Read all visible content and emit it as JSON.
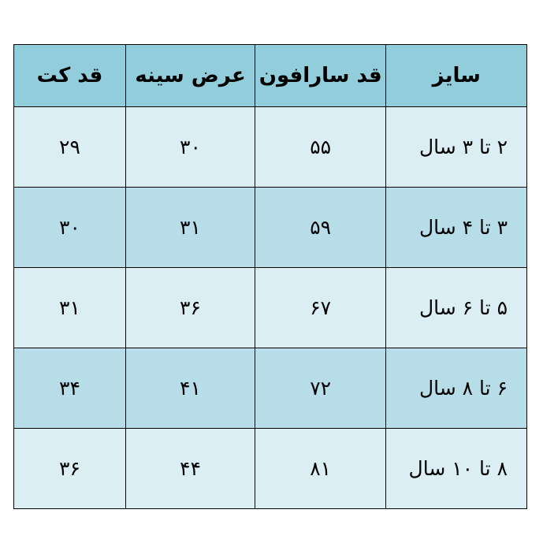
{
  "table": {
    "headers": [
      "سایز",
      "قد سارافون",
      "عرض سینه",
      "قد کت"
    ],
    "rows": [
      [
        "۲ تا ۳ سال",
        "۵۵",
        "۳۰",
        "۲۹"
      ],
      [
        "۳ تا ۴ سال",
        "۵۹",
        "۳۱",
        "۳۰"
      ],
      [
        "۵ تا ۶ سال",
        "۶۷",
        "۳۶",
        "۳۱"
      ],
      [
        "۶ تا ۸ سال",
        "۷۲",
        "۴۱",
        "۳۴"
      ],
      [
        "۸ تا ۱۰ سال",
        "۸۱",
        "۴۴",
        "۳۶"
      ]
    ]
  },
  "colors": {
    "header": "#92cddc",
    "row_light": "#dbeef3",
    "row_dark": "#b6dde8"
  }
}
